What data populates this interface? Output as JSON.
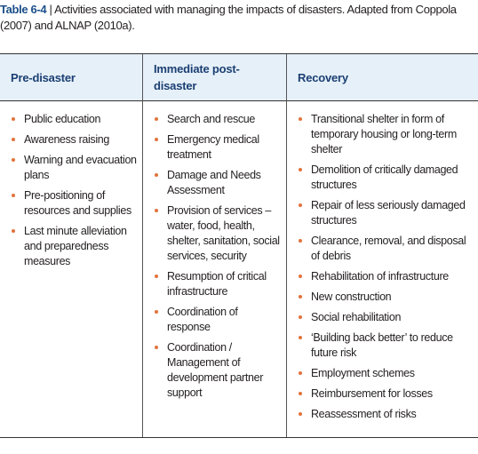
{
  "caption": {
    "label": "Table 6-4",
    "text": "| Activities associated with managing the impacts of disasters. Adapted from Coppola (2007) and ALNAP (2010a)."
  },
  "table": {
    "columns": [
      {
        "header": "Pre-disaster",
        "items": [
          "Public education",
          "Awareness raising",
          "Warning and evacuation plans",
          "Pre-positioning of resources and supplies",
          "Last minute alleviation and preparedness measures"
        ]
      },
      {
        "header": "Immediate post-disaster",
        "items": [
          "Search and rescue",
          "Emergency medical treatment",
          "Damage and Needs Assessment",
          "Provision of services – water, food, health, shelter, sanitation, social services, security",
          "Resumption of critical infrastructure",
          "Coordination of response",
          "Coordination / Management of development partner support"
        ]
      },
      {
        "header": "Recovery",
        "items": [
          "Transitional shelter in form of temporary housing or long-term shelter",
          "Demolition of critically damaged structures",
          "Repair of less seriously damaged structures",
          "Clearance, removal, and disposal of debris",
          "Rehabilitation of infrastructure",
          "New construction",
          "Social rehabilitation",
          "‘Building back better’ to reduce future risk",
          "Employment schemes",
          "Reimbursement for losses",
          "Reassessment of risks"
        ]
      }
    ]
  }
}
